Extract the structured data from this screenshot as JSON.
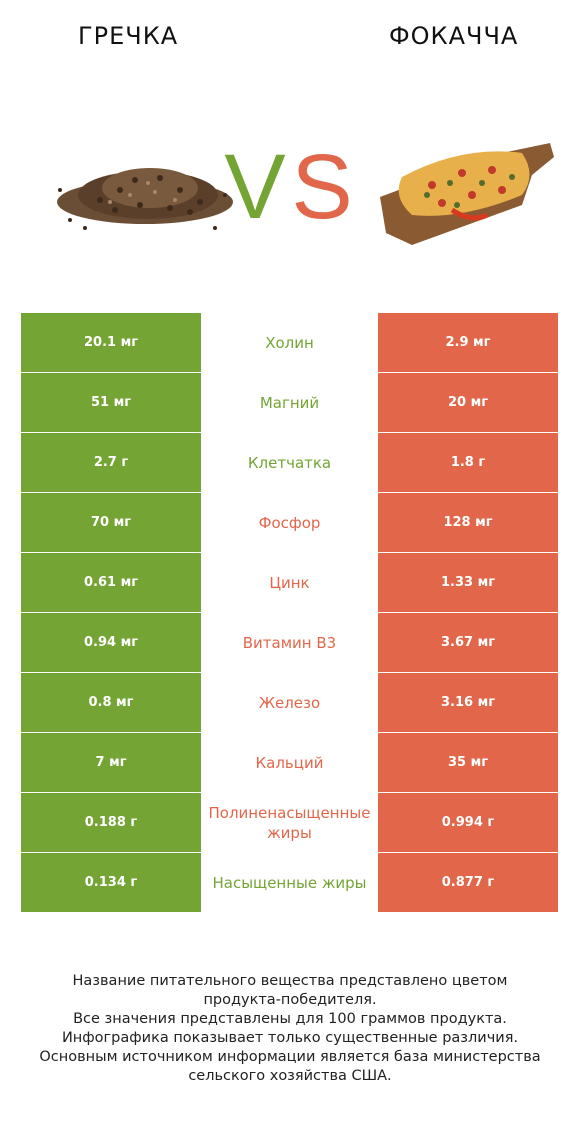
{
  "header": {
    "left_title": "ГРЕЧКА",
    "right_title": "ФОКАЧЧА",
    "vs_left": "V",
    "vs_right": "S"
  },
  "colors": {
    "left": "#74a534",
    "right": "#e2674a"
  },
  "rows": [
    {
      "left": "20.1 мг",
      "name": "Холин",
      "right": "2.9 мг",
      "winner": "left"
    },
    {
      "left": "51 мг",
      "name": "Магний",
      "right": "20 мг",
      "winner": "left"
    },
    {
      "left": "2.7 г",
      "name": "Клетчатка",
      "right": "1.8 г",
      "winner": "left"
    },
    {
      "left": "70 мг",
      "name": "Фосфор",
      "right": "128 мг",
      "winner": "right"
    },
    {
      "left": "0.61 мг",
      "name": "Цинк",
      "right": "1.33 мг",
      "winner": "right"
    },
    {
      "left": "0.94 мг",
      "name": "Витамин B3",
      "right": "3.67 мг",
      "winner": "right"
    },
    {
      "left": "0.8 мг",
      "name": "Железо",
      "right": "3.16 мг",
      "winner": "right"
    },
    {
      "left": "7 мг",
      "name": "Кальций",
      "right": "35 мг",
      "winner": "right"
    },
    {
      "left": "0.188 г",
      "name": "Полиненасыщенные жиры",
      "right": "0.994 г",
      "winner": "right"
    },
    {
      "left": "0.134 г",
      "name": "Насыщенные жиры",
      "right": "0.877 г",
      "winner": "left"
    }
  ],
  "footnote": [
    "Название питательного вещества представлено цветом",
    "продукта-победителя.",
    "Все значения представлены для 100 граммов продукта.",
    "Инфографика показывает только существенные различия.",
    "Основным источником информации является база министерства",
    "сельского хозяйства США."
  ]
}
